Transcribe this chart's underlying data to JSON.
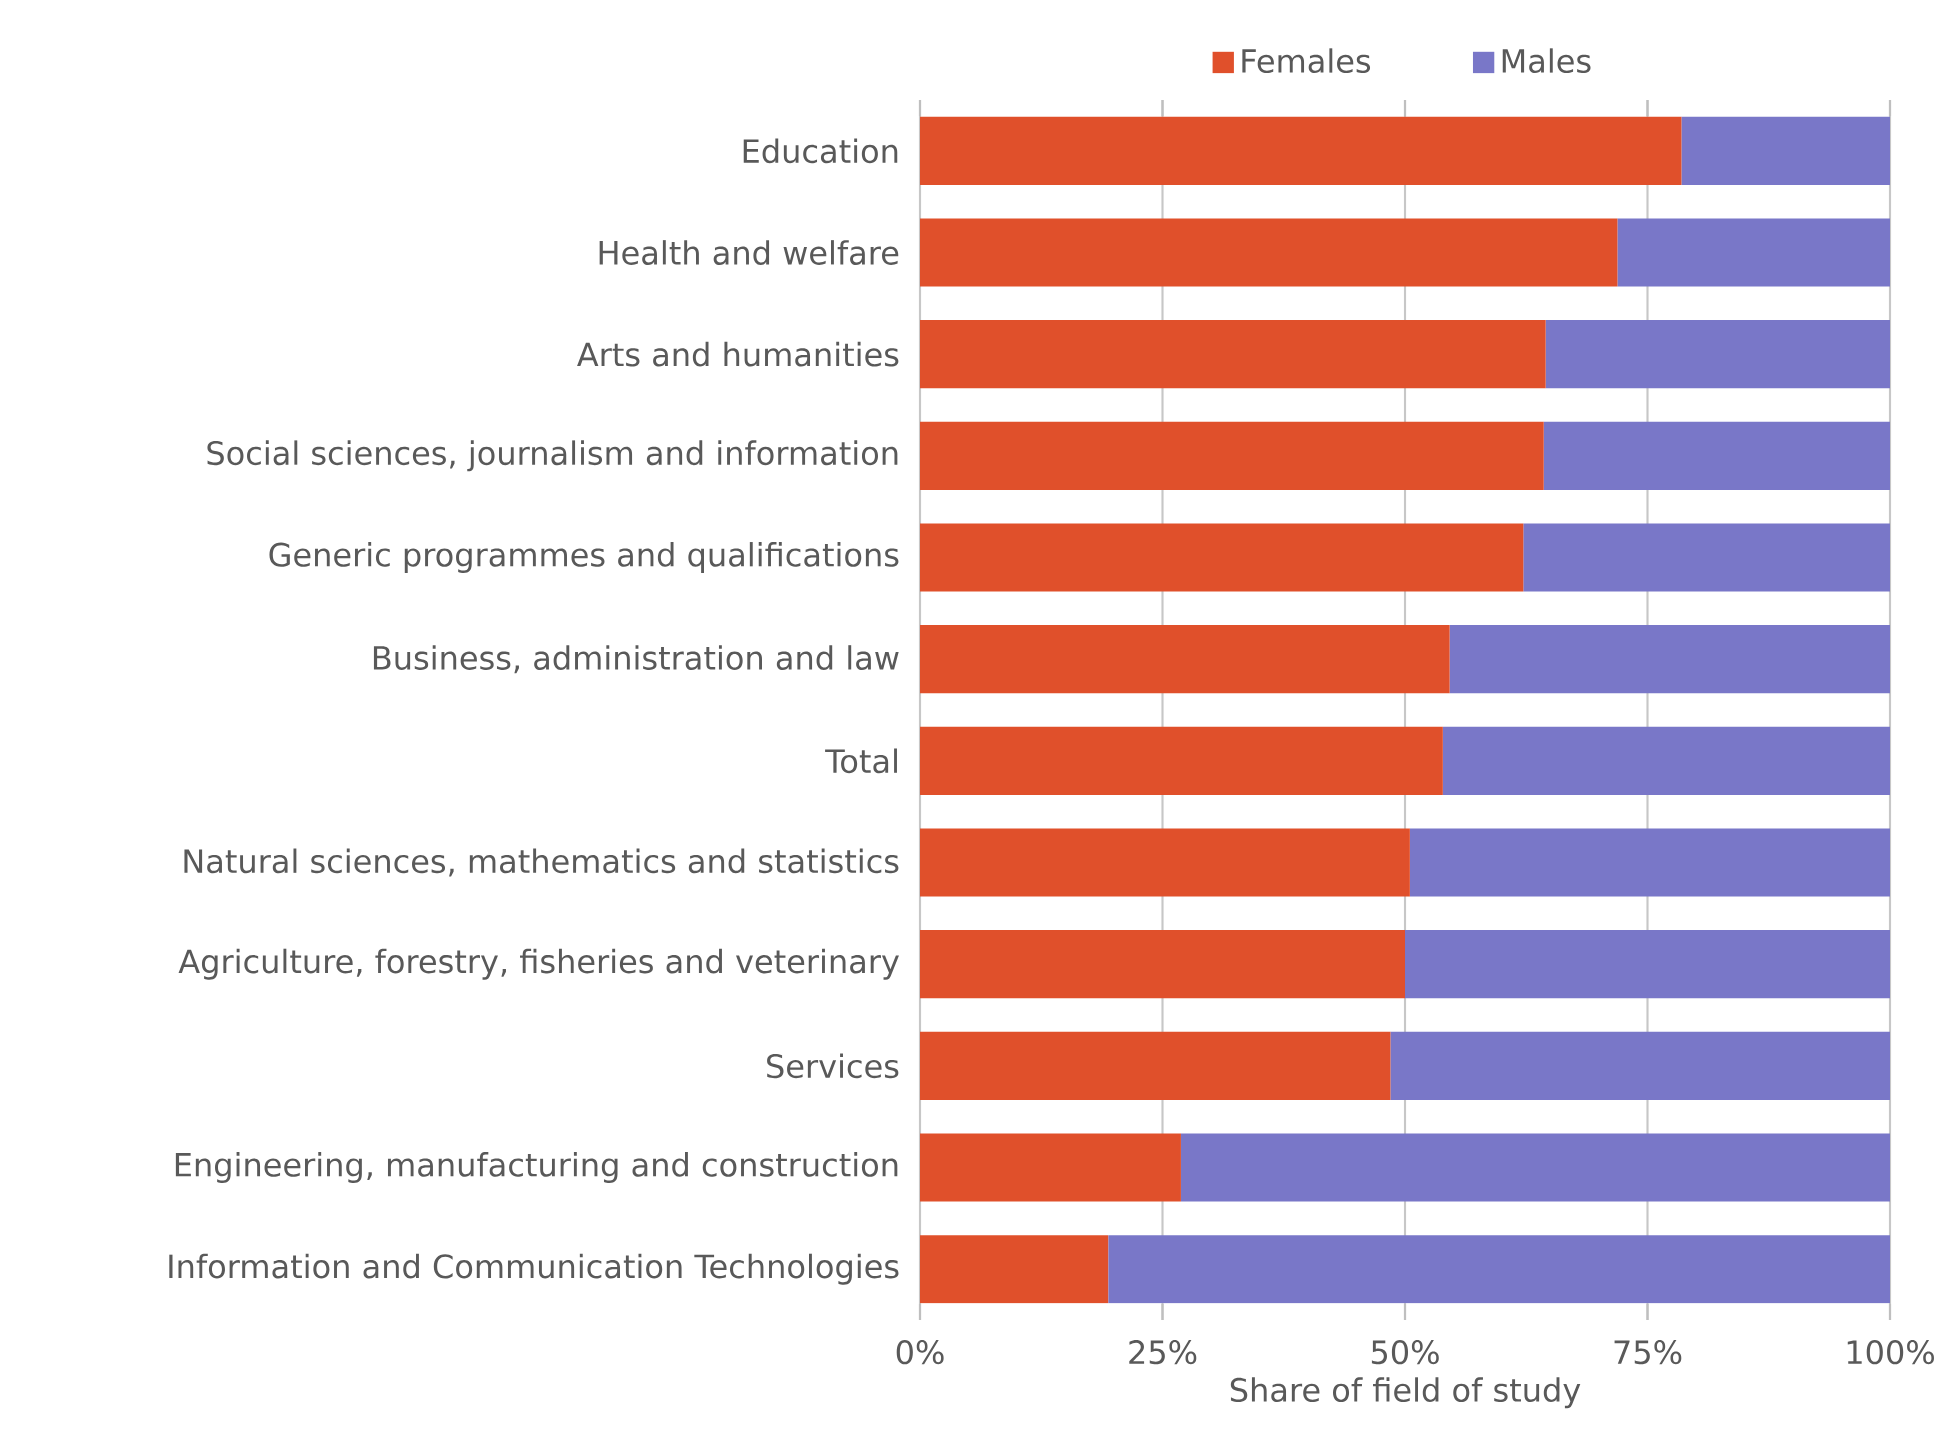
{
  "chart_data": {
    "type": "bar",
    "orientation": "horizontal",
    "stacked": true,
    "xlabel": "Share of field of study",
    "categories": [
      "Education",
      "Health and welfare",
      "Arts and humanities",
      "Social sciences, journalism and information",
      "Generic programmes and qualifications",
      "Business, administration and law",
      "Total",
      "Natural sciences, mathematics and statistics",
      "Agriculture, forestry, fisheries and veterinary",
      "Services",
      "Engineering, manufacturing and construction",
      "Information and Communication Technologies"
    ],
    "series": [
      {
        "name": "Females",
        "color": "#e0502b",
        "values": [
          78.5,
          71.9,
          64.5,
          64.3,
          62.2,
          54.6,
          53.9,
          50.5,
          50.0,
          48.5,
          26.9,
          19.4
        ]
      },
      {
        "name": "Males",
        "color": "#7977c8",
        "values": [
          21.5,
          28.1,
          35.5,
          35.7,
          37.8,
          45.4,
          46.1,
          49.5,
          50.0,
          51.5,
          73.1,
          80.6
        ]
      }
    ],
    "xlim": [
      0,
      100
    ],
    "xticks": [
      {
        "value": 0,
        "label": "0%"
      },
      {
        "value": 25,
        "label": "25%"
      },
      {
        "value": 50,
        "label": "50%"
      },
      {
        "value": 75,
        "label": "75%"
      },
      {
        "value": 100,
        "label": "100%"
      }
    ],
    "grid": "x",
    "legend": "top"
  }
}
